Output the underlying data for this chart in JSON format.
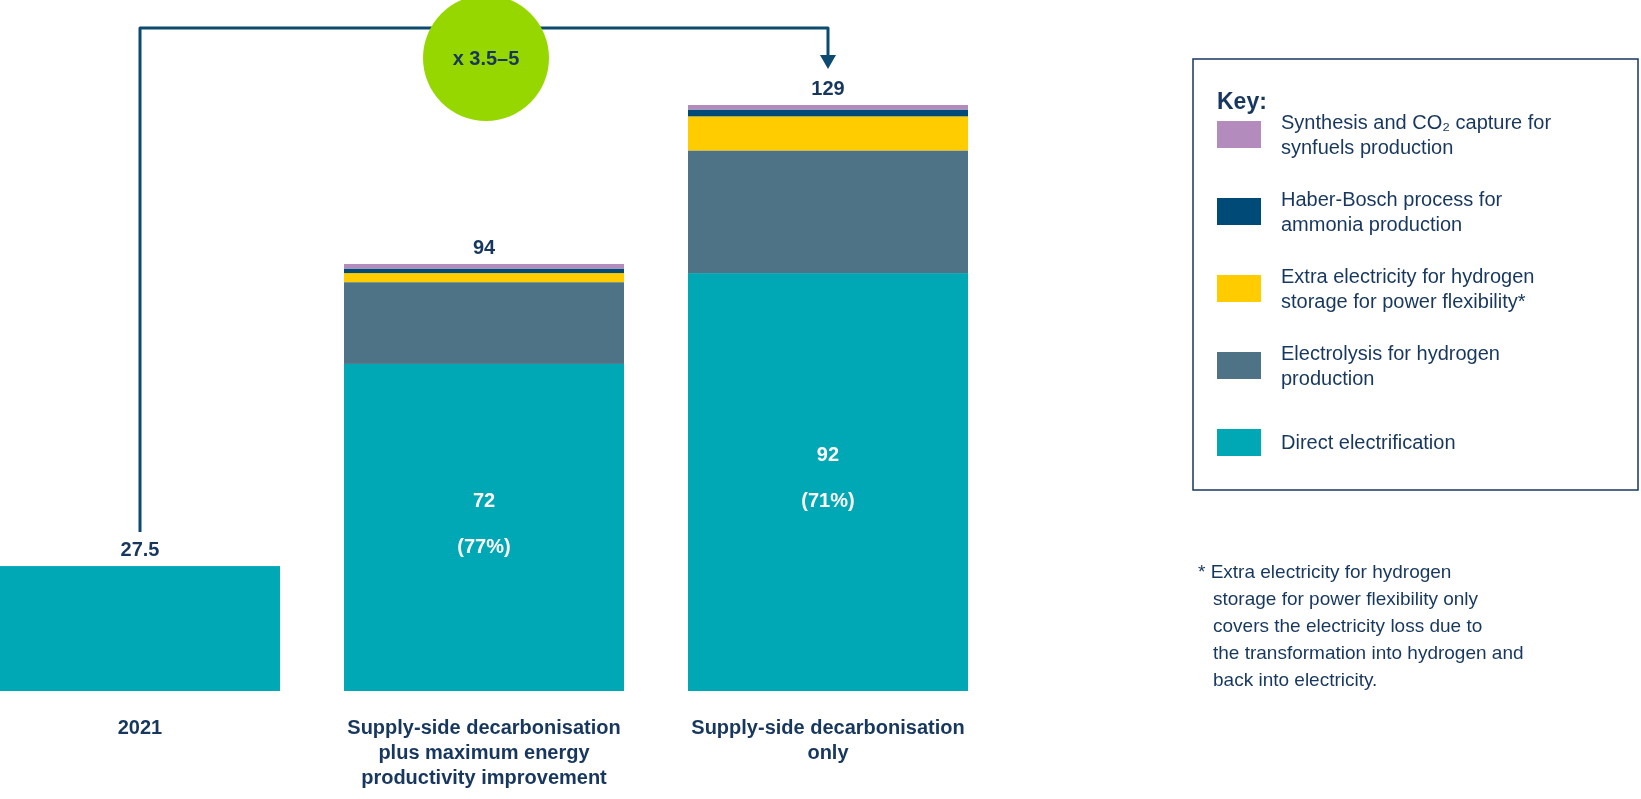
{
  "chart_data": {
    "type": "bar",
    "stacked": true,
    "categories": [
      "2021",
      "Supply-side decarbonisation plus maximum energy productivity improvement",
      "Supply-side decarbonisation only"
    ],
    "series": [
      {
        "name": "Direct electrification",
        "color": "#00a8b5",
        "values": [
          27.5,
          72,
          92
        ],
        "value_labels": [
          null,
          "72",
          "92"
        ]
      },
      {
        "name": "Electrolysis for hydrogen production",
        "color": "#4e7387",
        "values": [
          0,
          18,
          27
        ]
      },
      {
        "name": "Extra electricity for hydrogen storage for power flexibility*",
        "color": "#ffcc00",
        "values": [
          0,
          2,
          7.5
        ]
      },
      {
        "name": "Haber-Bosch process for ammonia production",
        "color": "#004a77",
        "values": [
          0,
          1,
          1.5
        ]
      },
      {
        "name": "Synthesis and CO₂ capture for synfuels production",
        "color": "#b48bbd",
        "values": [
          0,
          1,
          1
        ]
      }
    ],
    "totals": [
      "27.5",
      "94",
      "129"
    ],
    "legend": "right",
    "legend_title": "Key:",
    "annotations": [
      "x 3.5–5",
      "(77%)",
      "(71%)",
      "* Extra electricity for hydrogen storage for power flexibility only covers the electricity loss due to the transformation into hydrogen and back into electricity."
    ]
  }
}
